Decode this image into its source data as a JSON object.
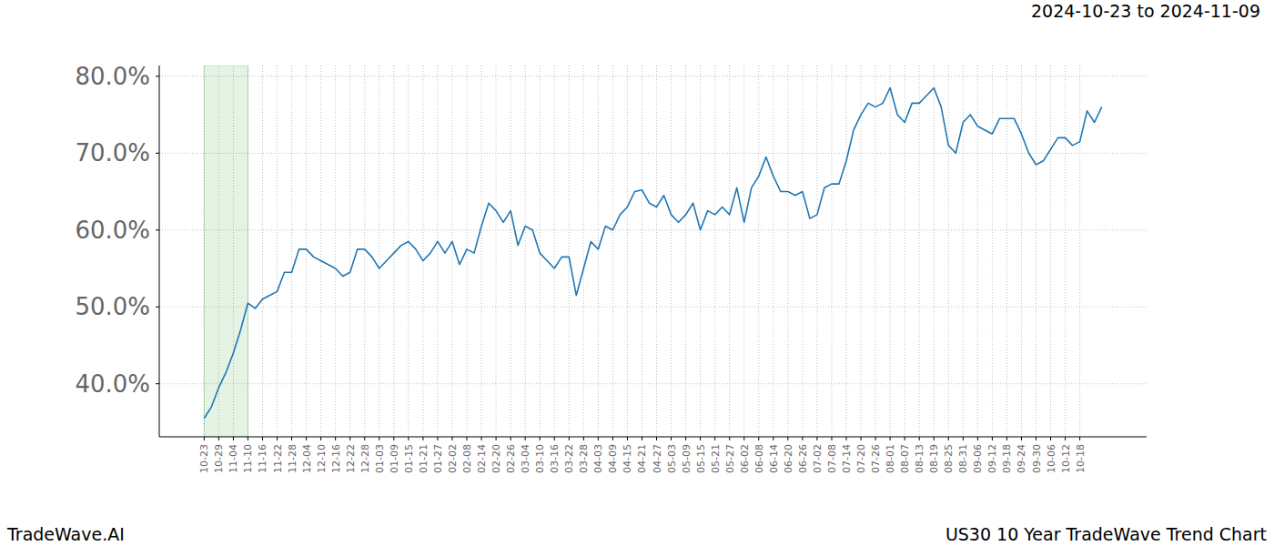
{
  "chart_data": {
    "type": "line",
    "title": "US30 10 Year TradeWave Trend Chart",
    "subtitle": "2024-10-23 to 2024-11-09",
    "annotations": [
      "TradeWave.AI"
    ],
    "highlight": [
      "10-23",
      "11-10"
    ],
    "color": "#1f77b4",
    "grid": true,
    "categories": [
      "10-23",
      null,
      "10-29",
      null,
      "11-04",
      null,
      "11-10",
      null,
      "11-16",
      null,
      "11-22",
      null,
      "11-28",
      null,
      "12-04",
      null,
      "12-10",
      null,
      "12-16",
      null,
      "12-22",
      null,
      "12-28",
      null,
      "01-03",
      null,
      "01-09",
      null,
      "01-15",
      null,
      "01-21",
      null,
      "01-27",
      null,
      "02-02",
      null,
      "02-08",
      null,
      "02-14",
      null,
      "02-20",
      null,
      "02-26",
      null,
      "03-04",
      null,
      "03-10",
      null,
      "03-16",
      null,
      "03-22",
      null,
      "03-28",
      null,
      "04-03",
      null,
      "04-09",
      null,
      "04-15",
      null,
      "04-21",
      null,
      "04-27",
      null,
      "05-03",
      null,
      "05-09",
      null,
      "05-15",
      null,
      "05-21",
      null,
      "05-27",
      null,
      "06-02",
      null,
      "06-08",
      null,
      "06-14",
      null,
      "06-20",
      null,
      "06-26",
      null,
      "07-02",
      null,
      "07-08",
      null,
      "07-14",
      null,
      "07-20",
      null,
      "07-26",
      null,
      "08-01",
      null,
      "08-07",
      null,
      "08-13",
      null,
      "08-19",
      null,
      "08-25",
      null,
      "08-31",
      null,
      "09-06",
      null,
      "09-12",
      null,
      "09-18",
      null,
      "09-24",
      null,
      "09-30",
      null,
      "10-06",
      null,
      "10-12",
      null,
      "10-18",
      null,
      null,
      null
    ],
    "values": [
      35.5,
      37,
      39.5,
      41.5,
      44,
      47,
      50.5,
      49.8,
      51,
      51.5,
      52,
      54.5,
      54.5,
      57.5,
      57.5,
      56.5,
      56,
      55.5,
      55,
      54,
      54.5,
      57.5,
      57.5,
      56.5,
      55,
      56,
      57,
      58,
      58.5,
      57.5,
      56,
      57,
      58.5,
      57,
      58.5,
      55.5,
      57.5,
      57,
      60.5,
      63.5,
      62.5,
      61,
      62.5,
      58,
      60.5,
      60,
      57,
      56,
      55,
      56.5,
      56.5,
      51.5,
      55,
      58.5,
      57.5,
      60.5,
      60,
      62,
      63,
      65,
      65.2,
      63.5,
      63,
      64.5,
      62,
      61,
      62,
      63.5,
      60,
      62.5,
      62,
      63,
      62,
      65.5,
      61,
      65.5,
      67,
      69.5,
      67,
      65,
      65,
      64.5,
      65,
      61.5,
      62,
      65.5,
      66,
      66,
      69,
      73,
      75,
      76.5,
      76,
      76.5,
      78.5,
      75,
      74,
      76.5,
      76.5,
      77.5,
      78.5,
      76,
      71,
      70,
      74,
      75,
      73.5,
      73,
      72.5,
      74.5,
      74.5,
      74.5,
      72.5,
      70,
      68.5,
      69,
      70.5,
      72,
      72,
      71,
      71.5,
      75.5,
      74,
      76
    ],
    "ylim": [
      33.1,
      81.4
    ],
    "yticks": [
      {
        "value": 40,
        "label": "40.0%"
      },
      {
        "value": 50,
        "label": "50.0%"
      },
      {
        "value": 60,
        "label": "60.0%"
      },
      {
        "value": 70,
        "label": "70.0%"
      },
      {
        "value": 80,
        "label": "80.0%"
      }
    ]
  }
}
